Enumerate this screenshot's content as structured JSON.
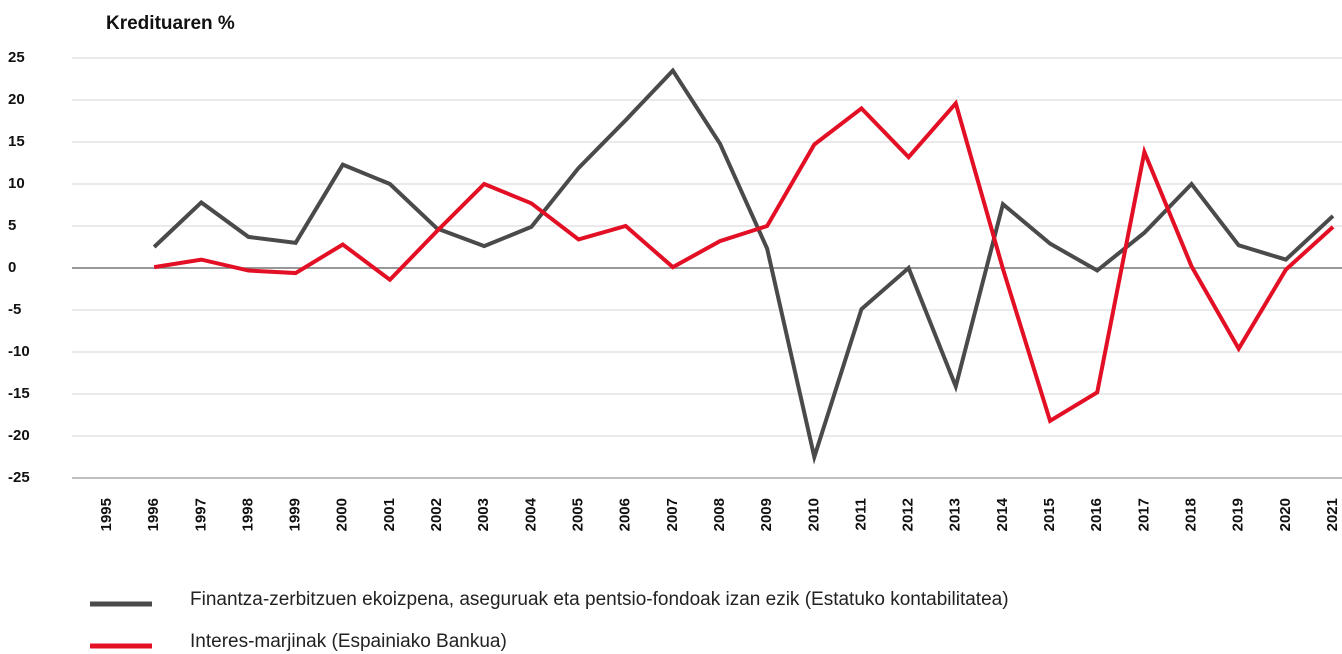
{
  "chart_data": {
    "type": "line",
    "ylabel": "Kredituaren %",
    "categories": [
      "1995",
      "1996",
      "1997",
      "1998",
      "1999",
      "2000",
      "2001",
      "2002",
      "2003",
      "2004",
      "2005",
      "2006",
      "2007",
      "2008",
      "2009",
      "2010",
      "2011",
      "2012",
      "2013",
      "2014",
      "2015",
      "2016",
      "2017",
      "2018",
      "2019",
      "2020",
      "2021"
    ],
    "series": [
      {
        "name": "Finantza-zerbitzuen ekoizpena, aseguruak eta pentsio-fondoak izan ezik (Estatuko kontabilitatea)",
        "color": "#4a4a4a",
        "values": [
          null,
          2.5,
          7.8,
          3.7,
          3.0,
          12.3,
          10.0,
          4.7,
          2.6,
          4.9,
          11.9,
          17.6,
          23.5,
          14.8,
          2.3,
          -22.5,
          -4.9,
          0.0,
          -14.1,
          7.6,
          2.9,
          -0.3,
          4.2,
          10.0,
          2.7,
          1.0,
          6.2
        ]
      },
      {
        "name": "Interes-marjinak (Espainiako Bankua)",
        "color": "#e30f25",
        "values": [
          null,
          0.1,
          1.0,
          -0.3,
          -0.6,
          2.8,
          -1.4,
          4.4,
          10.0,
          7.7,
          3.4,
          5.0,
          0.1,
          3.2,
          5.0,
          14.7,
          19.0,
          13.2,
          19.6,
          -0.1,
          -18.2,
          -14.8,
          13.8,
          0.2,
          -9.6,
          -0.2,
          4.9
        ]
      }
    ],
    "ylim": [
      -25,
      25
    ],
    "yticks": [
      -25,
      -20,
      -15,
      -10,
      -5,
      0,
      5,
      10,
      15,
      20,
      25
    ],
    "grid": true
  }
}
